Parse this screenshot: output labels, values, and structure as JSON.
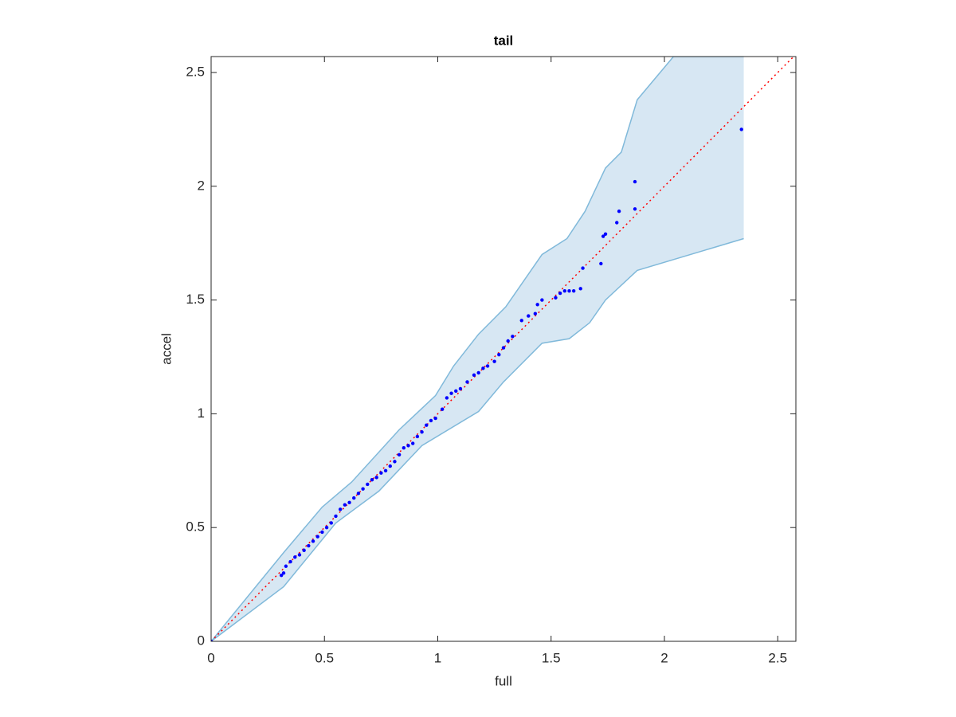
{
  "chart_data": {
    "type": "scatter",
    "title": "tail",
    "xlabel": "full",
    "ylabel": "accel",
    "x": [
      0,
      0.31,
      0.32,
      0.33,
      0.35,
      0.37,
      0.39,
      0.41,
      0.43,
      0.45,
      0.47,
      0.49,
      0.51,
      0.53,
      0.55,
      0.57,
      0.59,
      0.61,
      0.63,
      0.65,
      0.67,
      0.69,
      0.71,
      0.73,
      0.75,
      0.77,
      0.79,
      0.81,
      0.83,
      0.85,
      0.87,
      0.89,
      0.91,
      0.93,
      0.95,
      0.97,
      0.99,
      1.02,
      1.04,
      1.06,
      1.08,
      1.1,
      1.13,
      1.16,
      1.18,
      1.2,
      1.22,
      1.25,
      1.27,
      1.29,
      1.31,
      1.33,
      1.37,
      1.4,
      1.43,
      1.44,
      1.46,
      1.52,
      1.54,
      1.56,
      1.58,
      1.6,
      1.63,
      1.64,
      1.72,
      1.73,
      1.74,
      1.79,
      1.8,
      1.87,
      1.87,
      2.34
    ],
    "y": [
      0,
      0.29,
      0.3,
      0.33,
      0.35,
      0.37,
      0.38,
      0.4,
      0.42,
      0.44,
      0.46,
      0.48,
      0.5,
      0.52,
      0.55,
      0.58,
      0.6,
      0.61,
      0.63,
      0.65,
      0.67,
      0.69,
      0.71,
      0.72,
      0.74,
      0.75,
      0.77,
      0.79,
      0.82,
      0.85,
      0.86,
      0.87,
      0.9,
      0.92,
      0.95,
      0.97,
      0.98,
      1.02,
      1.07,
      1.09,
      1.1,
      1.11,
      1.14,
      1.17,
      1.18,
      1.2,
      1.21,
      1.23,
      1.26,
      1.29,
      1.32,
      1.34,
      1.41,
      1.43,
      1.44,
      1.48,
      1.5,
      1.51,
      1.53,
      1.54,
      1.54,
      1.54,
      1.55,
      1.64,
      1.66,
      1.78,
      1.79,
      1.84,
      1.89,
      2.02,
      1.9,
      2.25
    ],
    "marker_color": "#0000ff",
    "band": {
      "fill": "#d7e7f3",
      "edge": "#80b9da",
      "upper_x": [
        0,
        0.32,
        0.49,
        0.62,
        0.83,
        0.99,
        1.07,
        1.18,
        1.3,
        1.46,
        1.57,
        1.65,
        1.74,
        1.81,
        1.88,
        2.04,
        2.35
      ],
      "upper_y": [
        0,
        0.39,
        0.59,
        0.7,
        0.93,
        1.08,
        1.21,
        1.35,
        1.47,
        1.7,
        1.77,
        1.89,
        2.08,
        2.15,
        2.38,
        2.57,
        2.57
      ],
      "lower_x": [
        0,
        0.32,
        0.55,
        0.74,
        0.93,
        1.18,
        1.29,
        1.46,
        1.58,
        1.67,
        1.74,
        1.88,
        2.35
      ],
      "lower_y": [
        0,
        0.24,
        0.52,
        0.66,
        0.86,
        1.01,
        1.14,
        1.31,
        1.33,
        1.4,
        1.5,
        1.63,
        1.77
      ]
    },
    "reference_line": {
      "color": "#ff0000",
      "x": [
        0,
        2.58
      ],
      "y": [
        0,
        2.58
      ]
    },
    "xlim": [
      0,
      2.58
    ],
    "ylim": [
      0,
      2.57
    ],
    "xticks": [
      0,
      0.5,
      1,
      1.5,
      2,
      2.5
    ],
    "yticks": [
      0,
      0.5,
      1,
      1.5,
      2,
      2.5
    ]
  }
}
